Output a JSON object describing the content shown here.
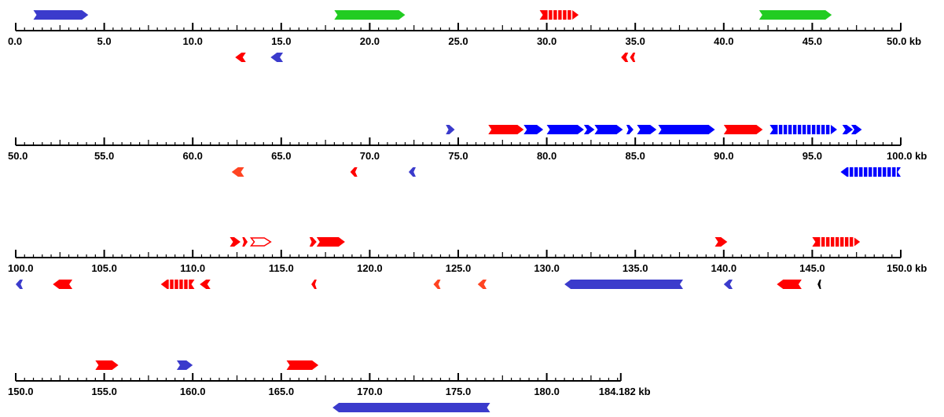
{
  "colors": {
    "blue": "#3b3bcc",
    "green": "#22cc22",
    "red": "#ff0000",
    "orange": "#ff4422",
    "bright_blue": "#0000ff",
    "black": "#000000"
  },
  "tracks": [
    {
      "start_kb": 0,
      "end_kb": 50,
      "labels": [
        "0.0",
        "5.0",
        "10.0",
        "15.0",
        "20.0",
        "25.0",
        "30.0",
        "35.0",
        "40.0",
        "45.0",
        "50.0 kb"
      ],
      "genes": [
        {
          "s": 1.0,
          "e": 4.1,
          "strand": "+",
          "color": "blue"
        },
        {
          "s": 18.0,
          "e": 22.0,
          "strand": "+",
          "color": "green"
        },
        {
          "s": 29.6,
          "e": 31.8,
          "strand": "+",
          "color": "red",
          "style": "dashed"
        },
        {
          "s": 42.0,
          "e": 46.1,
          "strand": "+",
          "color": "green"
        },
        {
          "s": 12.4,
          "e": 13.0,
          "strand": "-",
          "color": "red"
        },
        {
          "s": 14.4,
          "e": 15.1,
          "strand": "-",
          "color": "blue"
        },
        {
          "s": 34.2,
          "e": 34.6,
          "strand": "-",
          "color": "red"
        },
        {
          "s": 34.7,
          "e": 35.0,
          "strand": "-",
          "color": "red"
        }
      ]
    },
    {
      "start_kb": 50,
      "end_kb": 100,
      "labels": [
        "50.0",
        "55.0",
        "60.0",
        "65.0",
        "70.0",
        "75.0",
        "80.0",
        "85.0",
        "90.0",
        "95.0",
        "100.0 kb"
      ],
      "genes": [
        {
          "s": 74.3,
          "e": 74.8,
          "strand": "+",
          "color": "blue"
        },
        {
          "s": 76.7,
          "e": 78.7,
          "strand": "+",
          "color": "red"
        },
        {
          "s": 78.7,
          "e": 79.8,
          "strand": "+",
          "color": "bright_blue"
        },
        {
          "s": 80.0,
          "e": 82.1,
          "strand": "+",
          "color": "bright_blue"
        },
        {
          "s": 82.1,
          "e": 82.7,
          "strand": "+",
          "color": "bright_blue"
        },
        {
          "s": 82.7,
          "e": 84.3,
          "strand": "+",
          "color": "bright_blue"
        },
        {
          "s": 84.5,
          "e": 84.9,
          "strand": "+",
          "color": "bright_blue"
        },
        {
          "s": 85.1,
          "e": 86.2,
          "strand": "+",
          "color": "bright_blue"
        },
        {
          "s": 86.3,
          "e": 89.5,
          "strand": "+",
          "color": "bright_blue"
        },
        {
          "s": 90.0,
          "e": 92.2,
          "strand": "+",
          "color": "red"
        },
        {
          "s": 92.6,
          "e": 96.4,
          "strand": "+",
          "color": "bright_blue",
          "style": "dashed"
        },
        {
          "s": 96.7,
          "e": 97.3,
          "strand": "+",
          "color": "bright_blue"
        },
        {
          "s": 97.2,
          "e": 97.8,
          "strand": "+",
          "color": "bright_blue"
        },
        {
          "s": 62.2,
          "e": 62.9,
          "strand": "-",
          "color": "orange"
        },
        {
          "s": 68.9,
          "e": 69.3,
          "strand": "-",
          "color": "red"
        },
        {
          "s": 72.2,
          "e": 72.6,
          "strand": "-",
          "color": "blue"
        },
        {
          "s": 96.6,
          "e": 100.0,
          "strand": "-",
          "color": "bright_blue",
          "style": "dashed"
        }
      ]
    },
    {
      "start_kb": 100,
      "end_kb": 150,
      "labels": [
        "100.0",
        "105.0",
        "110.0",
        "115.0",
        "120.0",
        "125.0",
        "130.0",
        "135.0",
        "140.0",
        "145.0",
        "150.0 kb"
      ],
      "genes": [
        {
          "s": 112.1,
          "e": 112.7,
          "strand": "+",
          "color": "red",
          "style": "dashed"
        },
        {
          "s": 112.8,
          "e": 113.1,
          "strand": "+",
          "color": "red"
        },
        {
          "s": 113.3,
          "e": 114.4,
          "strand": "+",
          "color": "red",
          "style": "outline"
        },
        {
          "s": 116.6,
          "e": 117.0,
          "strand": "+",
          "color": "red"
        },
        {
          "s": 117.0,
          "e": 118.6,
          "strand": "+",
          "color": "red"
        },
        {
          "s": 139.5,
          "e": 140.2,
          "strand": "+",
          "color": "red"
        },
        {
          "s": 145.0,
          "e": 147.7,
          "strand": "+",
          "color": "red",
          "style": "dashed"
        },
        {
          "s": 100.0,
          "e": 100.4,
          "strand": "-",
          "color": "blue"
        },
        {
          "s": 102.1,
          "e": 103.2,
          "strand": "-",
          "color": "red"
        },
        {
          "s": 108.2,
          "e": 110.1,
          "strand": "-",
          "color": "red",
          "style": "dashed"
        },
        {
          "s": 110.4,
          "e": 111.0,
          "strand": "-",
          "color": "red"
        },
        {
          "s": 116.7,
          "e": 117.0,
          "strand": "-",
          "color": "red"
        },
        {
          "s": 123.6,
          "e": 124.0,
          "strand": "-",
          "color": "orange"
        },
        {
          "s": 126.1,
          "e": 126.6,
          "strand": "-",
          "color": "orange"
        },
        {
          "s": 131.0,
          "e": 137.7,
          "strand": "-",
          "color": "blue"
        },
        {
          "s": 140.0,
          "e": 140.5,
          "strand": "-",
          "color": "blue"
        },
        {
          "s": 143.0,
          "e": 144.4,
          "strand": "-",
          "color": "red"
        },
        {
          "s": 145.3,
          "e": 145.5,
          "strand": "-",
          "color": "black"
        }
      ]
    },
    {
      "start_kb": 150,
      "end_kb": 184.182,
      "scale_end_kb": 200,
      "labels": [
        "150.0",
        "155.0",
        "160.0",
        "165.0",
        "170.0",
        "175.0",
        "180.0",
        "184.182 kb"
      ],
      "genes": [
        {
          "s": 154.5,
          "e": 155.8,
          "strand": "+",
          "color": "red"
        },
        {
          "s": 159.1,
          "e": 160.0,
          "strand": "+",
          "color": "blue"
        },
        {
          "s": 165.3,
          "e": 167.1,
          "strand": "+",
          "color": "red"
        },
        {
          "s": 167.9,
          "e": 176.8,
          "strand": "-",
          "color": "blue"
        }
      ]
    }
  ]
}
